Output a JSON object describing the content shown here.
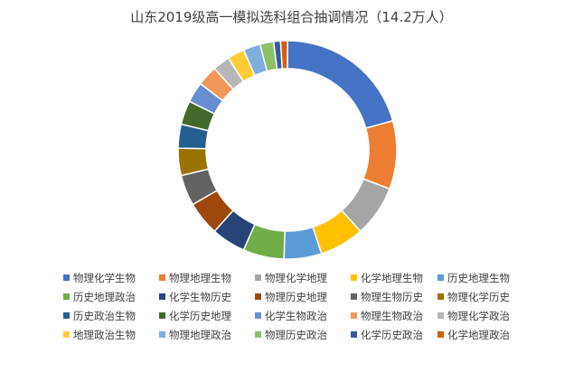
{
  "chart_data": {
    "type": "pie",
    "donut": true,
    "title": "山东2019级高一模拟选科组合抽调情况（14.2万人）",
    "legend_position": "bottom",
    "series": [
      {
        "name": "物理化学生物",
        "value": 20.5,
        "color": "#4472C4"
      },
      {
        "name": "物理地理生物",
        "value": 10.0,
        "color": "#ED7D31"
      },
      {
        "name": "物理化学地理",
        "value": 7.5,
        "color": "#A5A5A5"
      },
      {
        "name": "化学地理生物",
        "value": 6.5,
        "color": "#FFC000"
      },
      {
        "name": "历史地理生物",
        "value": 5.5,
        "color": "#5B9BD5"
      },
      {
        "name": "历史地理政治",
        "value": 6.0,
        "color": "#70AD47"
      },
      {
        "name": "化学生物历史",
        "value": 5.0,
        "color": "#264478"
      },
      {
        "name": "物理历史地理",
        "value": 5.0,
        "color": "#9E480E"
      },
      {
        "name": "物理生物历史",
        "value": 4.5,
        "color": "#636363"
      },
      {
        "name": "物理化学历史",
        "value": 4.0,
        "color": "#997300"
      },
      {
        "name": "历史政治生物",
        "value": 3.5,
        "color": "#255E91"
      },
      {
        "name": "化学历史地理",
        "value": 3.5,
        "color": "#43682B"
      },
      {
        "name": "化学生物政治",
        "value": 3.0,
        "color": "#698ED0"
      },
      {
        "name": "物理生物政治",
        "value": 3.0,
        "color": "#F1975A"
      },
      {
        "name": "物理化学政治",
        "value": 2.5,
        "color": "#B7B7B7"
      },
      {
        "name": "地理政治生物",
        "value": 2.5,
        "color": "#FFCD33"
      },
      {
        "name": "物理地理政治",
        "value": 2.5,
        "color": "#7CAFDD"
      },
      {
        "name": "物理历史政治",
        "value": 2.0,
        "color": "#8CC168"
      },
      {
        "name": "化学历史政治",
        "value": 1.0,
        "color": "#335AA1"
      },
      {
        "name": "化学地理政治",
        "value": 1.0,
        "color": "#D26012"
      }
    ]
  }
}
